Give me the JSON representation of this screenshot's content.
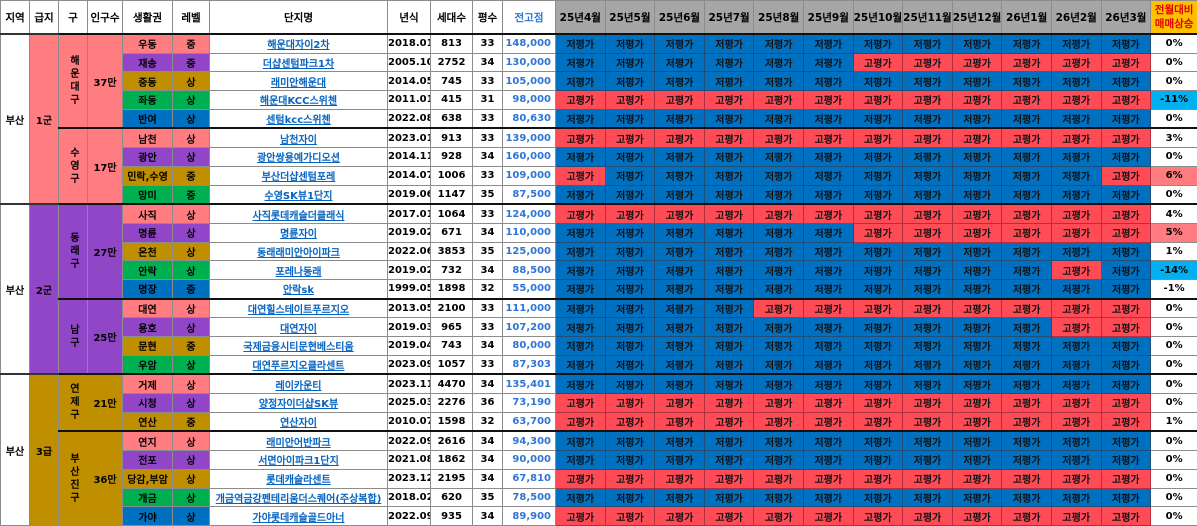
{
  "headers": {
    "region": "지역",
    "tier": "급지",
    "district": "구",
    "population": "인구수",
    "area": "생활권",
    "level": "레벨",
    "name": "단지명",
    "year": "년식",
    "households": "세대수",
    "pyeong": "평수",
    "peak": "전고점",
    "months": [
      "25년4월",
      "25년5월",
      "25년6월",
      "25년7월",
      "25년8월",
      "25년9월",
      "25년10월",
      "25년11월",
      "25년12월",
      "26년1월",
      "26년2월",
      "26년3월"
    ],
    "change_line1": "전월대비",
    "change_line2": "매매상승"
  },
  "colors": {
    "pink": "#ff7c80",
    "purple": "#9146c8",
    "gold": "#bf8f00",
    "green": "#00b050",
    "blue": "#0070c0",
    "low_cell": "#0070c0",
    "high_cell": "#ff4b55",
    "change_down": "#00b0f0",
    "change_up": "#ff7c80"
  },
  "groups": [
    {
      "region": "부산",
      "tier": "1군",
      "tier_color": "#ff7c80",
      "districts": [
        {
          "name": "해운대구",
          "population": "37만",
          "complexes": [
            {
              "area": "우동",
              "area_color": "#ff7c80",
              "level": "중",
              "name": "해운대자이2차",
              "year": "2018.01",
              "households": "813",
              "pyeong": "33",
              "peak": "148,000",
              "months": [
                "저평가",
                "저평가",
                "저평가",
                "저평가",
                "저평가",
                "저평가",
                "저평가",
                "저평가",
                "저평가",
                "저평가",
                "저평가",
                "저평가"
              ],
              "change": "0%",
              "change_color": ""
            },
            {
              "area": "재송",
              "area_color": "#9146c8",
              "level": "중",
              "name": "더샵센텀파크1차",
              "year": "2005.10",
              "households": "2752",
              "pyeong": "34",
              "peak": "130,000",
              "months": [
                "저평가",
                "저평가",
                "저평가",
                "저평가",
                "저평가",
                "저평가",
                "고평가",
                "고평가",
                "고평가",
                "고평가",
                "고평가",
                "고평가"
              ],
              "change": "0%",
              "change_color": ""
            },
            {
              "area": "중동",
              "area_color": "#bf8f00",
              "level": "상",
              "name": "래미안해운대",
              "year": "2014.05",
              "households": "745",
              "pyeong": "33",
              "peak": "105,000",
              "months": [
                "저평가",
                "저평가",
                "저평가",
                "저평가",
                "저평가",
                "저평가",
                "저평가",
                "저평가",
                "저평가",
                "저평가",
                "저평가",
                "저평가"
              ],
              "change": "0%",
              "change_color": ""
            },
            {
              "area": "좌동",
              "area_color": "#00b050",
              "level": "상",
              "name": "해운대KCC스위첸",
              "year": "2011.01",
              "households": "415",
              "pyeong": "31",
              "peak": "98,000",
              "months": [
                "고평가",
                "고평가",
                "고평가",
                "고평가",
                "고평가",
                "고평가",
                "고평가",
                "고평가",
                "고평가",
                "고평가",
                "고평가",
                "고평가"
              ],
              "change": "-11%",
              "change_color": "#00b0f0"
            },
            {
              "area": "반여",
              "area_color": "#0070c0",
              "level": "상",
              "name": "센텀kcc스위첸",
              "year": "2022.08",
              "households": "638",
              "pyeong": "33",
              "peak": "80,630",
              "months": [
                "저평가",
                "저평가",
                "저평가",
                "저평가",
                "저평가",
                "저평가",
                "저평가",
                "저평가",
                "저평가",
                "저평가",
                "저평가",
                "저평가"
              ],
              "change": "0%",
              "change_color": ""
            }
          ]
        },
        {
          "name": "수영구",
          "population": "17만",
          "complexes": [
            {
              "area": "남천",
              "area_color": "#ff7c80",
              "level": "상",
              "name": "남천자이",
              "year": "2023.01",
              "households": "913",
              "pyeong": "33",
              "peak": "139,000",
              "months": [
                "고평가",
                "고평가",
                "고평가",
                "고평가",
                "고평가",
                "고평가",
                "고평가",
                "고평가",
                "고평가",
                "고평가",
                "고평가",
                "고평가"
              ],
              "change": "3%",
              "change_color": ""
            },
            {
              "area": "광안",
              "area_color": "#9146c8",
              "level": "상",
              "name": "광안쌍용예가디오션",
              "year": "2014.11",
              "households": "928",
              "pyeong": "34",
              "peak": "160,000",
              "months": [
                "저평가",
                "저평가",
                "저평가",
                "저평가",
                "저평가",
                "저평가",
                "저평가",
                "저평가",
                "저평가",
                "저평가",
                "저평가",
                "저평가"
              ],
              "change": "0%",
              "change_color": ""
            },
            {
              "area": "민락,수영",
              "area_color": "#bf8f00",
              "level": "중",
              "name": "부산더샵센텀포레",
              "year": "2014.07",
              "households": "1006",
              "pyeong": "33",
              "peak": "109,000",
              "months": [
                "고평가",
                "저평가",
                "저평가",
                "저평가",
                "저평가",
                "저평가",
                "저평가",
                "저평가",
                "저평가",
                "저평가",
                "저평가",
                "고평가"
              ],
              "change": "6%",
              "change_color": "#ff7c80"
            },
            {
              "area": "망미",
              "area_color": "#00b050",
              "level": "중",
              "name": "수영SK뷰1단지",
              "year": "2019.06",
              "households": "1147",
              "pyeong": "35",
              "peak": "87,500",
              "months": [
                "저평가",
                "저평가",
                "저평가",
                "저평가",
                "저평가",
                "저평가",
                "저평가",
                "저평가",
                "저평가",
                "저평가",
                "저평가",
                "저평가"
              ],
              "change": "0%",
              "change_color": ""
            }
          ]
        }
      ]
    },
    {
      "region": "부산",
      "tier": "2군",
      "tier_color": "#9146c8",
      "districts": [
        {
          "name": "동래구",
          "population": "27만",
          "complexes": [
            {
              "area": "사직",
              "area_color": "#ff7c80",
              "level": "상",
              "name": "사직롯데캐슬더클래식",
              "year": "2017.01",
              "households": "1064",
              "pyeong": "33",
              "peak": "124,000",
              "months": [
                "고평가",
                "고평가",
                "고평가",
                "고평가",
                "고평가",
                "고평가",
                "고평가",
                "고평가",
                "고평가",
                "고평가",
                "고평가",
                "고평가"
              ],
              "change": "4%",
              "change_color": ""
            },
            {
              "area": "명륜",
              "area_color": "#9146c8",
              "level": "상",
              "name": "명륜자이",
              "year": "2019.02",
              "households": "671",
              "pyeong": "34",
              "peak": "110,000",
              "months": [
                "저평가",
                "저평가",
                "저평가",
                "저평가",
                "저평가",
                "저평가",
                "고평가",
                "고평가",
                "고평가",
                "고평가",
                "고평가",
                "고평가"
              ],
              "change": "5%",
              "change_color": "#ff7c80"
            },
            {
              "area": "온천",
              "area_color": "#bf8f00",
              "level": "상",
              "name": "동래래미안아이파크",
              "year": "2022.06",
              "households": "3853",
              "pyeong": "35",
              "peak": "125,000",
              "months": [
                "저평가",
                "저평가",
                "저평가",
                "저평가",
                "저평가",
                "저평가",
                "저평가",
                "저평가",
                "저평가",
                "저평가",
                "저평가",
                "저평가"
              ],
              "change": "1%",
              "change_color": ""
            },
            {
              "area": "안락",
              "area_color": "#00b050",
              "level": "상",
              "name": "포레나동래",
              "year": "2019.02",
              "households": "732",
              "pyeong": "34",
              "peak": "88,500",
              "months": [
                "저평가",
                "저평가",
                "저평가",
                "저평가",
                "저평가",
                "저평가",
                "저평가",
                "저평가",
                "저평가",
                "저평가",
                "고평가",
                "저평가"
              ],
              "change": "-14%",
              "change_color": "#00b0f0"
            },
            {
              "area": "명장",
              "area_color": "#0070c0",
              "level": "중",
              "name": "안락sk",
              "year": "1999.05",
              "households": "1898",
              "pyeong": "32",
              "peak": "55,000",
              "months": [
                "저평가",
                "저평가",
                "저평가",
                "저평가",
                "저평가",
                "저평가",
                "저평가",
                "저평가",
                "저평가",
                "저평가",
                "저평가",
                "저평가"
              ],
              "change": "-1%",
              "change_color": ""
            }
          ]
        },
        {
          "name": "남구",
          "population": "25만",
          "complexes": [
            {
              "area": "대연",
              "area_color": "#ff7c80",
              "level": "상",
              "name": "대연힐스테이트푸르지오",
              "year": "2013.05",
              "households": "2100",
              "pyeong": "33",
              "peak": "111,000",
              "months": [
                "저평가",
                "저평가",
                "저평가",
                "저평가",
                "고평가",
                "고평가",
                "고평가",
                "고평가",
                "고평가",
                "고평가",
                "고평가",
                "고평가"
              ],
              "change": "0%",
              "change_color": ""
            },
            {
              "area": "용호",
              "area_color": "#9146c8",
              "level": "상",
              "name": "대연자이",
              "year": "2019.03",
              "households": "965",
              "pyeong": "33",
              "peak": "107,200",
              "months": [
                "저평가",
                "저평가",
                "저평가",
                "저평가",
                "저평가",
                "저평가",
                "저평가",
                "저평가",
                "저평가",
                "저평가",
                "고평가",
                "고평가"
              ],
              "change": "0%",
              "change_color": ""
            },
            {
              "area": "문현",
              "area_color": "#bf8f00",
              "level": "중",
              "name": "국제금융시티문현베스티움",
              "year": "2019.04",
              "households": "743",
              "pyeong": "34",
              "peak": "80,000",
              "months": [
                "저평가",
                "저평가",
                "저평가",
                "저평가",
                "저평가",
                "저평가",
                "저평가",
                "저평가",
                "저평가",
                "저평가",
                "저평가",
                "저평가"
              ],
              "change": "0%",
              "change_color": ""
            },
            {
              "area": "우암",
              "area_color": "#00b050",
              "level": "상",
              "name": "대연푸르지오클라센트",
              "year": "2023.09",
              "households": "1057",
              "pyeong": "33",
              "peak": "87,303",
              "months": [
                "저평가",
                "저평가",
                "저평가",
                "저평가",
                "저평가",
                "저평가",
                "저평가",
                "저평가",
                "저평가",
                "저평가",
                "저평가",
                "저평가"
              ],
              "change": "0%",
              "change_color": ""
            }
          ]
        }
      ]
    },
    {
      "region": "부산",
      "tier": "3급",
      "tier_color": "#bf8f00",
      "districts": [
        {
          "name": "연제구",
          "population": "21만",
          "complexes": [
            {
              "area": "거제",
              "area_color": "#ff7c80",
              "level": "상",
              "name": "레이카운티",
              "year": "2023.11",
              "households": "4470",
              "pyeong": "34",
              "peak": "135,401",
              "months": [
                "저평가",
                "저평가",
                "저평가",
                "저평가",
                "저평가",
                "저평가",
                "저평가",
                "저평가",
                "저평가",
                "저평가",
                "저평가",
                "저평가"
              ],
              "change": "0%",
              "change_color": ""
            },
            {
              "area": "시청",
              "area_color": "#9146c8",
              "level": "상",
              "name": "양정자이더샵SK뷰",
              "year": "2025.03",
              "households": "2276",
              "pyeong": "36",
              "peak": "73,190",
              "months": [
                "고평가",
                "고평가",
                "고평가",
                "고평가",
                "고평가",
                "고평가",
                "고평가",
                "고평가",
                "고평가",
                "고평가",
                "고평가",
                "고평가"
              ],
              "change": "0%",
              "change_color": ""
            },
            {
              "area": "연산",
              "area_color": "#bf8f00",
              "level": "중",
              "name": "연산자이",
              "year": "2010.07",
              "households": "1598",
              "pyeong": "32",
              "peak": "63,700",
              "months": [
                "고평가",
                "고평가",
                "고평가",
                "고평가",
                "고평가",
                "고평가",
                "고평가",
                "고평가",
                "고평가",
                "고평가",
                "고평가",
                "고평가"
              ],
              "change": "1%",
              "change_color": ""
            }
          ]
        },
        {
          "name": "부산진구",
          "population": "36만",
          "complexes": [
            {
              "area": "연지",
              "area_color": "#ff7c80",
              "level": "상",
              "name": "래미안어반파크",
              "year": "2022.09",
              "households": "2616",
              "pyeong": "34",
              "peak": "94,300",
              "months": [
                "저평가",
                "저평가",
                "저평가",
                "저평가",
                "저평가",
                "저평가",
                "저평가",
                "저평가",
                "저평가",
                "저평가",
                "저평가",
                "저평가"
              ],
              "change": "0%",
              "change_color": ""
            },
            {
              "area": "전포",
              "area_color": "#9146c8",
              "level": "상",
              "name": "서면아이파크1단지",
              "year": "2021.08",
              "households": "1862",
              "pyeong": "34",
              "peak": "90,000",
              "months": [
                "저평가",
                "저평가",
                "저평가",
                "저평가",
                "저평가",
                "저평가",
                "저평가",
                "저평가",
                "저평가",
                "저평가",
                "저평가",
                "저평가"
              ],
              "change": "0%",
              "change_color": ""
            },
            {
              "area": "당감,부암",
              "area_color": "#bf8f00",
              "level": "상",
              "name": "롯데캐슬라센트",
              "year": "2023.12",
              "households": "2195",
              "pyeong": "34",
              "peak": "67,810",
              "months": [
                "고평가",
                "고평가",
                "고평가",
                "고평가",
                "고평가",
                "고평가",
                "고평가",
                "고평가",
                "고평가",
                "고평가",
                "고평가",
                "고평가"
              ],
              "change": "0%",
              "change_color": ""
            },
            {
              "area": "개금",
              "area_color": "#00b050",
              "level": "상",
              "name": "개금역금강펜테리움더스퀘어(주상복합)",
              "year": "2018.02",
              "households": "620",
              "pyeong": "35",
              "peak": "78,500",
              "months": [
                "저평가",
                "저평가",
                "저평가",
                "저평가",
                "저평가",
                "저평가",
                "저평가",
                "저평가",
                "저평가",
                "저평가",
                "저평가",
                "저평가"
              ],
              "change": "0%",
              "change_color": ""
            },
            {
              "area": "가야",
              "area_color": "#0070c0",
              "level": "상",
              "name": "가야롯데캐슬골드아너",
              "year": "2022.09",
              "households": "935",
              "pyeong": "34",
              "peak": "89,900",
              "months": [
                "고평가",
                "고평가",
                "고평가",
                "고평가",
                "고평가",
                "고평가",
                "고평가",
                "고평가",
                "고평가",
                "고평가",
                "고평가",
                "고평가"
              ],
              "change": "0%",
              "change_color": ""
            }
          ]
        }
      ]
    }
  ]
}
